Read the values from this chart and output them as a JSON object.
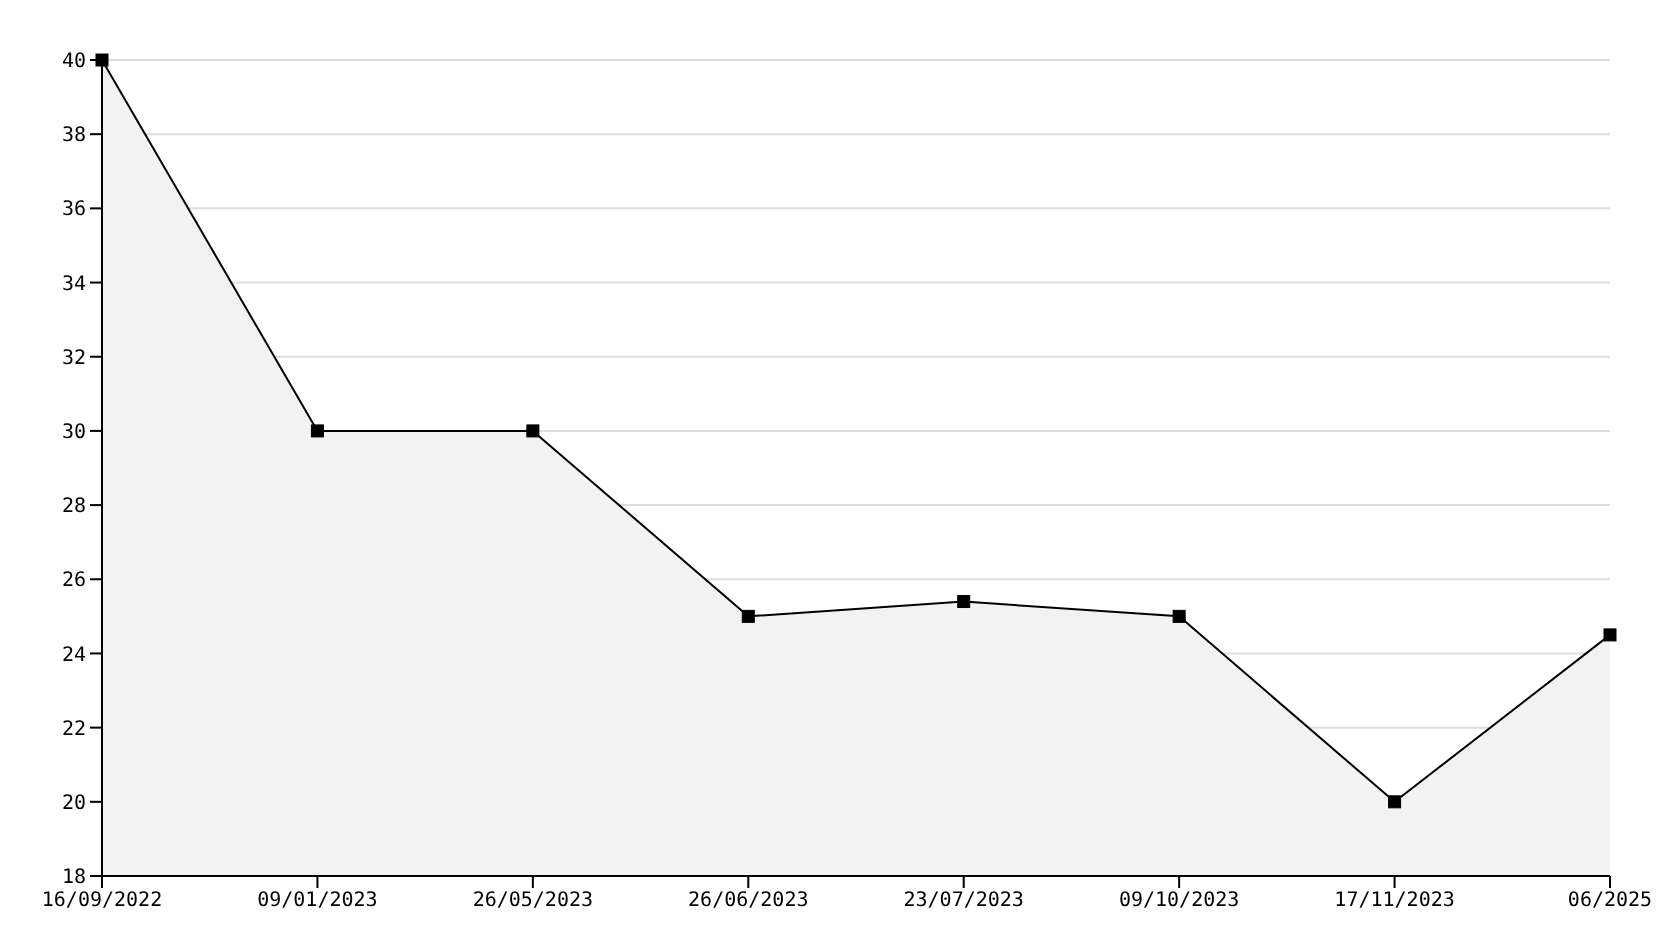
{
  "chart_data": {
    "type": "area",
    "categories": [
      "16/09/2022",
      "09/01/2023",
      "26/05/2023",
      "26/06/2023",
      "23/07/2023",
      "09/10/2023",
      "17/11/2023",
      "06/2025"
    ],
    "values": [
      40,
      30,
      30,
      25,
      25.4,
      25,
      20,
      24.5
    ],
    "color": "#000000",
    "ylim": [
      18,
      40
    ],
    "yticks": [
      18,
      20,
      22,
      24,
      26,
      28,
      30,
      32,
      34,
      36,
      38,
      40
    ],
    "grid": "y",
    "marker": "square",
    "line_style": "solid"
  }
}
